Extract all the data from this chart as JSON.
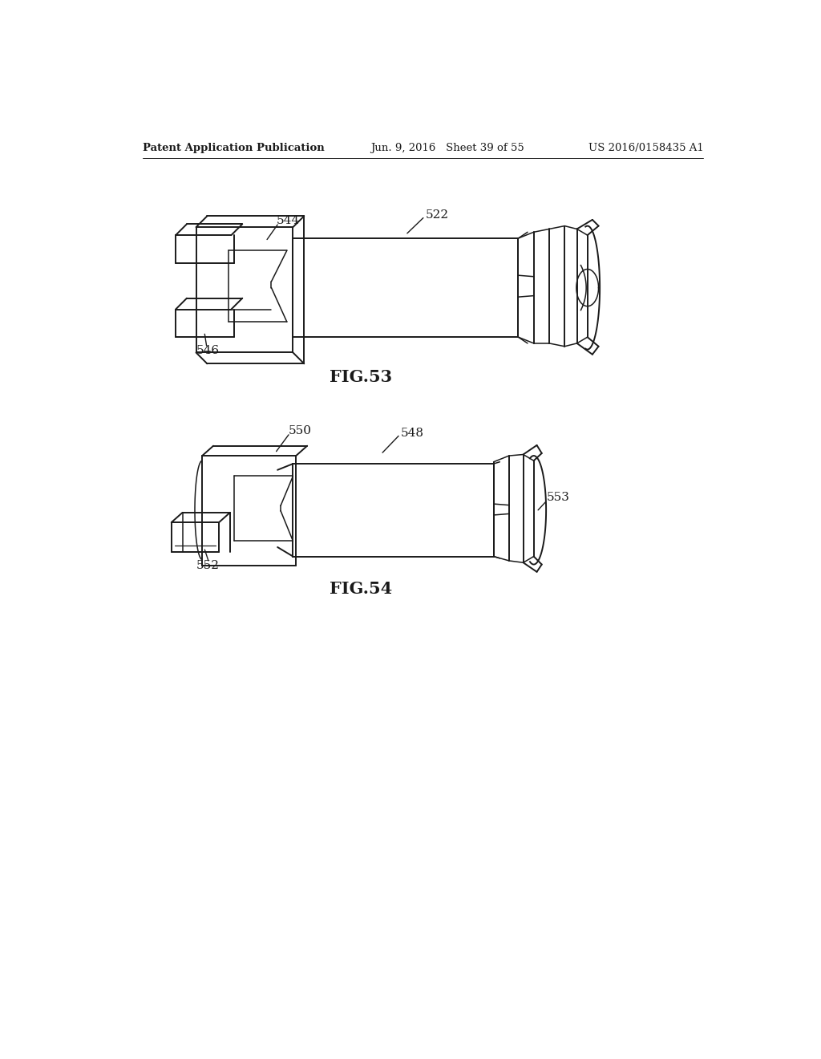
{
  "background_color": "#ffffff",
  "header_left": "Patent Application Publication",
  "header_center": "Jun. 9, 2016   Sheet 39 of 55",
  "header_right": "US 2016/0158435 A1",
  "fig53_label": "FIG.53",
  "fig54_label": "FIG.54",
  "ref_522": "522",
  "ref_544": "544",
  "ref_546": "546",
  "ref_548": "548",
  "ref_550": "550",
  "ref_552": "552",
  "ref_553": "553",
  "line_color": "#1a1a1a",
  "text_color": "#1a1a1a",
  "header_fontsize": 9.5,
  "label_fontsize": 15,
  "ref_fontsize": 11
}
